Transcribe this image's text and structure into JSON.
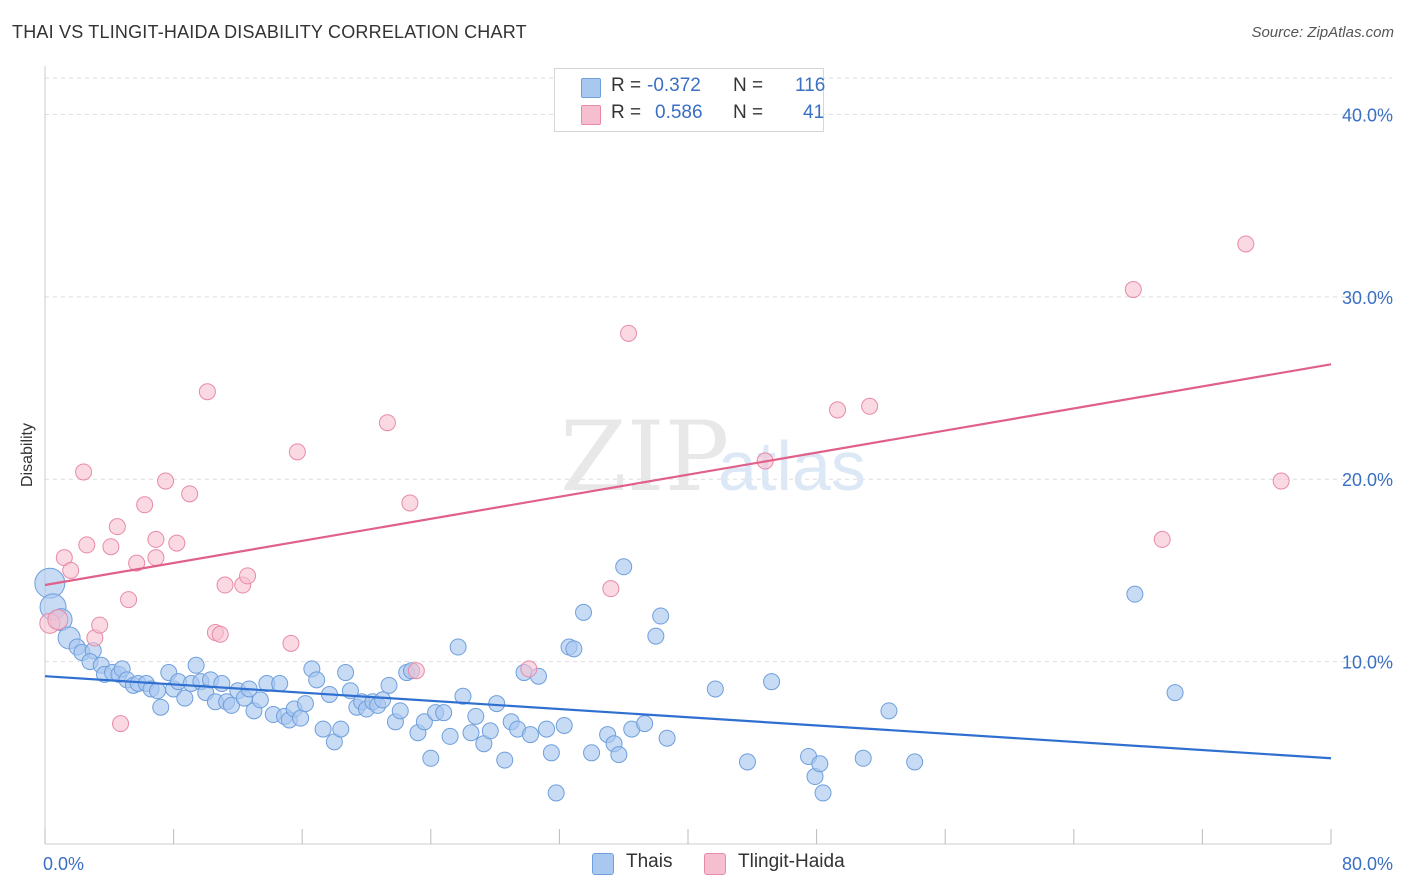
{
  "header": {
    "title": "THAI VS TLINGIT-HAIDA DISABILITY CORRELATION CHART",
    "source": "Source: ZipAtlas.com"
  },
  "watermark": {
    "zip": "ZIP",
    "atlas": "atlas"
  },
  "legend": {
    "rows": [
      {
        "r_label": "R =",
        "r_value": "-0.372",
        "n_label": "N =",
        "n_value": "116",
        "color": "#a9c8f0"
      },
      {
        "r_label": "R =",
        "r_value": "0.586",
        "n_label": "N =",
        "n_value": "41",
        "color": "#f6bfd0"
      }
    ]
  },
  "bottom_legend": [
    {
      "label": "Thais",
      "color": "#a9c8f0"
    },
    {
      "label": "Tlingit-Haida",
      "color": "#f6bfd0"
    }
  ],
  "colors": {
    "thai_fill": "#a9c8f0",
    "thai_stroke": "#6f9fdc",
    "thai_line": "#2f6fd0",
    "tlingit_fill": "#f6bfd0",
    "tlingit_stroke": "#e88aa8",
    "tlingit_line": "#e0608a",
    "tick_label": "#3a6fc4",
    "grid": "#dddddd"
  },
  "chart_data": {
    "type": "scatter",
    "title": "THAI VS TLINGIT-HAIDA DISABILITY CORRELATION CHART",
    "xlabel": "",
    "ylabel": "Disability",
    "xlim": [
      0,
      80
    ],
    "ylim": [
      0,
      42
    ],
    "x_tick_labels": [
      "0.0%",
      "80.0%"
    ],
    "y_ticks": [
      10,
      20,
      30,
      40
    ],
    "y_tick_labels": [
      "10.0%",
      "20.0%",
      "30.0%",
      "40.0%"
    ],
    "grid": true,
    "legend_position": "top-center",
    "series": [
      {
        "name": "Thais",
        "trend": [
          [
            0,
            9.2
          ],
          [
            80,
            4.7
          ]
        ],
        "points": [
          [
            0.3,
            14.3
          ],
          [
            0.5,
            13.0
          ],
          [
            1.0,
            12.3
          ],
          [
            1.5,
            11.3
          ],
          [
            2.0,
            10.8
          ],
          [
            2.3,
            10.5
          ],
          [
            3.0,
            10.6
          ],
          [
            2.8,
            10.0
          ],
          [
            3.5,
            9.8
          ],
          [
            3.7,
            9.3
          ],
          [
            4.2,
            9.4
          ],
          [
            4.6,
            9.3
          ],
          [
            4.8,
            9.6
          ],
          [
            5.1,
            9.0
          ],
          [
            5.5,
            8.7
          ],
          [
            5.8,
            8.8
          ],
          [
            6.3,
            8.8
          ],
          [
            6.6,
            8.5
          ],
          [
            7.0,
            8.4
          ],
          [
            7.2,
            7.5
          ],
          [
            7.7,
            9.4
          ],
          [
            8.0,
            8.5
          ],
          [
            8.3,
            8.9
          ],
          [
            8.7,
            8.0
          ],
          [
            9.1,
            8.8
          ],
          [
            9.4,
            9.8
          ],
          [
            9.7,
            8.9
          ],
          [
            10.0,
            8.3
          ],
          [
            10.3,
            9.0
          ],
          [
            10.6,
            7.8
          ],
          [
            11.0,
            8.8
          ],
          [
            11.3,
            7.8
          ],
          [
            11.6,
            7.6
          ],
          [
            12.0,
            8.4
          ],
          [
            12.4,
            8.0
          ],
          [
            12.7,
            8.5
          ],
          [
            13.0,
            7.3
          ],
          [
            13.4,
            7.9
          ],
          [
            13.8,
            8.8
          ],
          [
            14.2,
            7.1
          ],
          [
            14.6,
            8.8
          ],
          [
            14.9,
            7.0
          ],
          [
            15.2,
            6.8
          ],
          [
            15.5,
            7.4
          ],
          [
            15.9,
            6.9
          ],
          [
            16.2,
            7.7
          ],
          [
            16.6,
            9.6
          ],
          [
            16.9,
            9.0
          ],
          [
            17.3,
            6.3
          ],
          [
            17.7,
            8.2
          ],
          [
            18.0,
            5.6
          ],
          [
            18.4,
            6.3
          ],
          [
            18.7,
            9.4
          ],
          [
            19.0,
            8.4
          ],
          [
            19.4,
            7.5
          ],
          [
            19.7,
            7.8
          ],
          [
            20.0,
            7.4
          ],
          [
            20.4,
            7.8
          ],
          [
            20.7,
            7.6
          ],
          [
            21.0,
            7.9
          ],
          [
            21.4,
            8.7
          ],
          [
            21.8,
            6.7
          ],
          [
            22.1,
            7.3
          ],
          [
            22.5,
            9.4
          ],
          [
            22.8,
            9.5
          ],
          [
            23.2,
            6.1
          ],
          [
            23.6,
            6.7
          ],
          [
            24.0,
            4.7
          ],
          [
            24.3,
            7.2
          ],
          [
            24.8,
            7.2
          ],
          [
            25.2,
            5.9
          ],
          [
            25.7,
            10.8
          ],
          [
            26.0,
            8.1
          ],
          [
            26.5,
            6.1
          ],
          [
            26.8,
            7.0
          ],
          [
            27.3,
            5.5
          ],
          [
            27.7,
            6.2
          ],
          [
            28.1,
            7.7
          ],
          [
            28.6,
            4.6
          ],
          [
            29.0,
            6.7
          ],
          [
            29.4,
            6.3
          ],
          [
            29.8,
            9.4
          ],
          [
            30.2,
            6.0
          ],
          [
            30.7,
            9.2
          ],
          [
            31.2,
            6.3
          ],
          [
            31.5,
            5.0
          ],
          [
            31.8,
            2.8
          ],
          [
            32.3,
            6.5
          ],
          [
            32.6,
            10.8
          ],
          [
            32.9,
            10.7
          ],
          [
            33.5,
            12.7
          ],
          [
            34.0,
            5.0
          ],
          [
            35.0,
            6.0
          ],
          [
            35.4,
            5.5
          ],
          [
            35.7,
            4.9
          ],
          [
            36.0,
            15.2
          ],
          [
            36.5,
            6.3
          ],
          [
            37.3,
            6.6
          ],
          [
            38.0,
            11.4
          ],
          [
            38.3,
            12.5
          ],
          [
            38.7,
            5.8
          ],
          [
            41.7,
            8.5
          ],
          [
            43.7,
            4.5
          ],
          [
            45.2,
            8.9
          ],
          [
            47.5,
            4.8
          ],
          [
            47.9,
            3.7
          ],
          [
            48.2,
            4.4
          ],
          [
            48.4,
            2.8
          ],
          [
            50.9,
            4.7
          ],
          [
            52.5,
            7.3
          ],
          [
            54.1,
            4.5
          ],
          [
            67.8,
            13.7
          ],
          [
            70.3,
            8.3
          ]
        ]
      },
      {
        "name": "Tlingit-Haida",
        "trend": [
          [
            0,
            14.2
          ],
          [
            80,
            26.3
          ]
        ],
        "points": [
          [
            0.3,
            12.1
          ],
          [
            0.8,
            12.3
          ],
          [
            1.2,
            15.7
          ],
          [
            1.6,
            15.0
          ],
          [
            2.4,
            20.4
          ],
          [
            2.6,
            16.4
          ],
          [
            3.1,
            11.3
          ],
          [
            3.4,
            12.0
          ],
          [
            4.1,
            16.3
          ],
          [
            4.5,
            17.4
          ],
          [
            4.7,
            6.6
          ],
          [
            5.2,
            13.4
          ],
          [
            5.7,
            15.4
          ],
          [
            6.2,
            18.6
          ],
          [
            6.9,
            16.7
          ],
          [
            6.9,
            15.7
          ],
          [
            7.5,
            19.9
          ],
          [
            8.2,
            16.5
          ],
          [
            9.0,
            19.2
          ],
          [
            10.1,
            24.8
          ],
          [
            10.6,
            11.6
          ],
          [
            10.9,
            11.5
          ],
          [
            11.2,
            14.2
          ],
          [
            12.3,
            14.2
          ],
          [
            12.6,
            14.7
          ],
          [
            15.3,
            11.0
          ],
          [
            15.7,
            21.5
          ],
          [
            21.3,
            23.1
          ],
          [
            22.7,
            18.7
          ],
          [
            23.1,
            9.5
          ],
          [
            30.1,
            9.6
          ],
          [
            35.2,
            14.0
          ],
          [
            36.3,
            28.0
          ],
          [
            44.8,
            21.0
          ],
          [
            49.3,
            23.8
          ],
          [
            51.3,
            24.0
          ],
          [
            67.7,
            30.4
          ],
          [
            69.5,
            16.7
          ],
          [
            74.7,
            32.9
          ],
          [
            76.9,
            19.9
          ]
        ]
      }
    ]
  }
}
